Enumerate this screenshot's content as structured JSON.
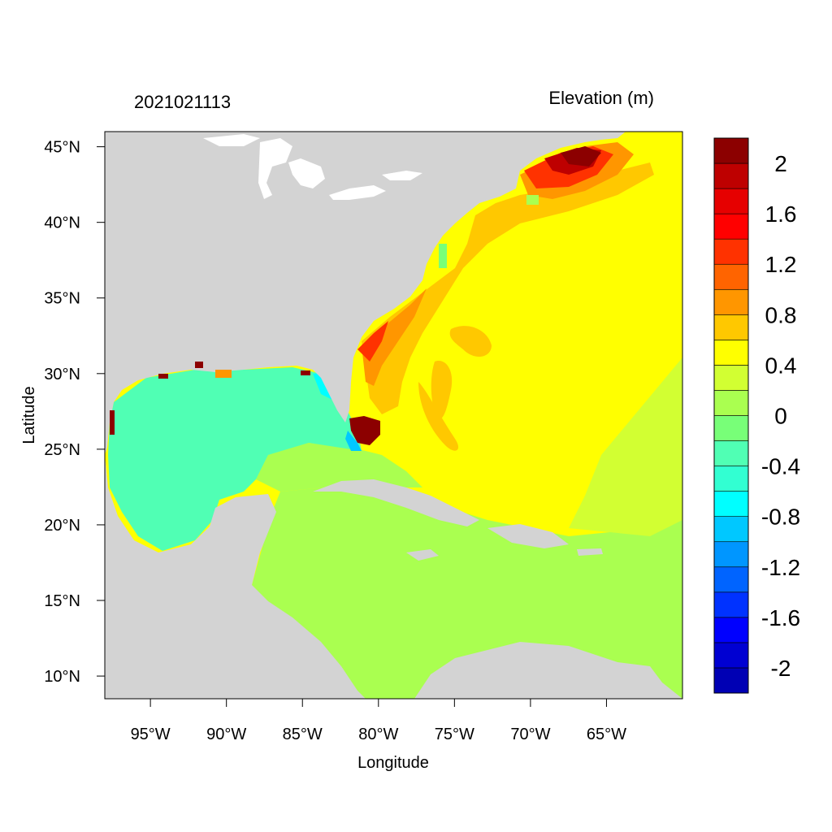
{
  "title_left": "2021021113",
  "title_right": "Elevation (m)",
  "xlabel": "Longitude",
  "ylabel": "Latitude",
  "chart_data": {
    "type": "heatmap",
    "variable": "Elevation (m)",
    "x_ticks": [
      {
        "value": -95,
        "label": "95°W"
      },
      {
        "value": -90,
        "label": "90°W"
      },
      {
        "value": -85,
        "label": "85°W"
      },
      {
        "value": -80,
        "label": "80°W"
      },
      {
        "value": -75,
        "label": "75°W"
      },
      {
        "value": -70,
        "label": "70°W"
      },
      {
        "value": -65,
        "label": "65°W"
      }
    ],
    "y_ticks": [
      {
        "value": 45,
        "label": "45°N"
      },
      {
        "value": 40,
        "label": "40°N"
      },
      {
        "value": 35,
        "label": "35°N"
      },
      {
        "value": 30,
        "label": "30°N"
      },
      {
        "value": 25,
        "label": "25°N"
      },
      {
        "value": 20,
        "label": "20°N"
      },
      {
        "value": 15,
        "label": "15°N"
      },
      {
        "value": 10,
        "label": "10°N"
      }
    ],
    "xlim": [
      -98,
      -60
    ],
    "ylim": [
      8.5,
      46
    ],
    "colorbar": {
      "levels": [
        {
          "color": "#0000b4",
          "label": ""
        },
        {
          "color": "#0000d2",
          "label": "-2"
        },
        {
          "color": "#0000ff",
          "label": ""
        },
        {
          "color": "#0032ff",
          "label": "-1.6"
        },
        {
          "color": "#0064ff",
          "label": ""
        },
        {
          "color": "#0096ff",
          "label": "-1.2"
        },
        {
          "color": "#00c8ff",
          "label": ""
        },
        {
          "color": "#00ffff",
          "label": "-0.8"
        },
        {
          "color": "#32ffd2",
          "label": ""
        },
        {
          "color": "#50ffb4",
          "label": "-0.4"
        },
        {
          "color": "#78ff78",
          "label": ""
        },
        {
          "color": "#aaff50",
          "label": "0"
        },
        {
          "color": "#d2ff32",
          "label": ""
        },
        {
          "color": "#ffff00",
          "label": "0.4"
        },
        {
          "color": "#ffc800",
          "label": ""
        },
        {
          "color": "#ff9600",
          "label": "0.8"
        },
        {
          "color": "#ff6400",
          "label": ""
        },
        {
          "color": "#ff3200",
          "label": "1.2"
        },
        {
          "color": "#ff0000",
          "label": ""
        },
        {
          "color": "#e60000",
          "label": "1.6"
        },
        {
          "color": "#be0000",
          "label": ""
        },
        {
          "color": "#8c0000",
          "label": "2"
        }
      ]
    },
    "land_color": "#d3d3d3"
  }
}
